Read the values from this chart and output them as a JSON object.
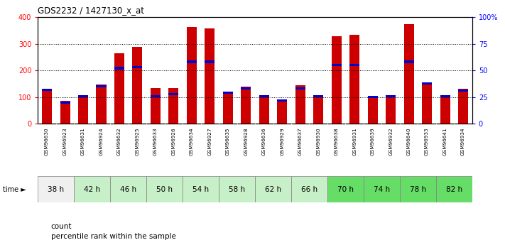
{
  "title": "GDS2232 / 1427130_x_at",
  "samples": [
    "GSM96630",
    "GSM96923",
    "GSM96631",
    "GSM96924",
    "GSM96632",
    "GSM96925",
    "GSM96633",
    "GSM96926",
    "GSM96634",
    "GSM96927",
    "GSM96635",
    "GSM96928",
    "GSM96636",
    "GSM96929",
    "GSM96637",
    "GSM96930",
    "GSM96638",
    "GSM96931",
    "GSM96639",
    "GSM96932",
    "GSM96640",
    "GSM96933",
    "GSM96641",
    "GSM96934"
  ],
  "counts": [
    130,
    85,
    100,
    148,
    265,
    288,
    135,
    135,
    362,
    357,
    115,
    138,
    105,
    88,
    145,
    105,
    328,
    335,
    100,
    108,
    375,
    150,
    102,
    130
  ],
  "percentiles": [
    32,
    20,
    26,
    35,
    52,
    53,
    26,
    28,
    58,
    58,
    29,
    33,
    26,
    22,
    33,
    26,
    55,
    55,
    25,
    26,
    58,
    38,
    26,
    31
  ],
  "time_groups": [
    {
      "label": "38 h",
      "start": 0,
      "end": 2,
      "color": "#f0f0f0"
    },
    {
      "label": "42 h",
      "start": 2,
      "end": 4,
      "color": "#c8f0c8"
    },
    {
      "label": "46 h",
      "start": 4,
      "end": 6,
      "color": "#c8f0c8"
    },
    {
      "label": "50 h",
      "start": 6,
      "end": 8,
      "color": "#c8f0c8"
    },
    {
      "label": "54 h",
      "start": 8,
      "end": 10,
      "color": "#c8f0c8"
    },
    {
      "label": "58 h",
      "start": 10,
      "end": 12,
      "color": "#c8f0c8"
    },
    {
      "label": "62 h",
      "start": 12,
      "end": 14,
      "color": "#c8f0c8"
    },
    {
      "label": "66 h",
      "start": 14,
      "end": 16,
      "color": "#c8f0c8"
    },
    {
      "label": "70 h",
      "start": 16,
      "end": 18,
      "color": "#66dd66"
    },
    {
      "label": "74 h",
      "start": 18,
      "end": 20,
      "color": "#66dd66"
    },
    {
      "label": "78 h",
      "start": 20,
      "end": 22,
      "color": "#66dd66"
    },
    {
      "label": "82 h",
      "start": 22,
      "end": 24,
      "color": "#66dd66"
    }
  ],
  "bar_color": "#cc0000",
  "blue_color": "#0000cc",
  "xtick_bg": "#d0d0d0",
  "left_ylim": [
    0,
    400
  ],
  "right_ylim": [
    0,
    100
  ],
  "left_yticks": [
    0,
    100,
    200,
    300,
    400
  ],
  "right_yticks": [
    0,
    25,
    50,
    75,
    100
  ],
  "right_yticklabels": [
    "0",
    "25",
    "50",
    "75",
    "100%"
  ]
}
